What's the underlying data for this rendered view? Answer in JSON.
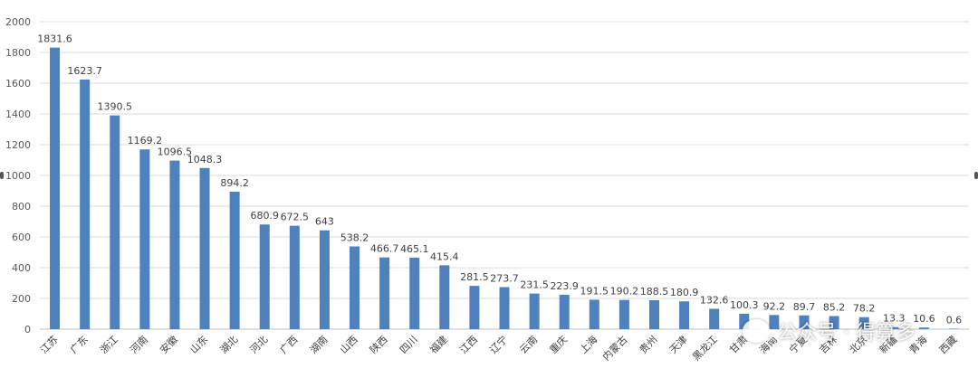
{
  "chart_data": {
    "type": "bar",
    "title": "",
    "xlabel": "",
    "ylabel": "",
    "ylim": [
      0,
      2000
    ],
    "yticks": [
      0,
      200,
      400,
      600,
      800,
      1000,
      1200,
      1400,
      1600,
      1800,
      2000
    ],
    "grid": true,
    "legend": "none",
    "bar_color": "#4F81BD",
    "categories": [
      "江苏",
      "广东",
      "浙江",
      "河南",
      "安徽",
      "山东",
      "湖北",
      "河北",
      "广西",
      "湖南",
      "山西",
      "陕西",
      "四川",
      "福建",
      "江西",
      "辽宁",
      "云南",
      "重庆",
      "上海",
      "内蒙古",
      "贵州",
      "天津",
      "黑龙江",
      "甘肃",
      "海南",
      "宁夏",
      "吉林",
      "北京",
      "新疆",
      "青海",
      "西藏"
    ],
    "values": [
      1831.6,
      1623.7,
      1390.5,
      1169.2,
      1096.5,
      1048.3,
      894.2,
      680.9,
      672.5,
      643,
      538.2,
      466.7,
      465.1,
      415.4,
      281.5,
      273.7,
      231.5,
      223.9,
      191.5,
      190.2,
      188.5,
      180.9,
      132.6,
      100.3,
      92.2,
      89.7,
      85.2,
      78.2,
      13.3,
      10.6,
      0.6
    ],
    "data_labels": [
      "1831.6",
      "1623.7",
      "1390.5",
      "1169.2",
      "1096.5",
      "1048.3",
      "894.2",
      "680.9",
      "672.5",
      "643",
      "538.2",
      "466.7",
      "465.1",
      "415.4",
      "281.5",
      "273.7",
      "231.5",
      "223.9",
      "191.5",
      "190.2",
      "188.5",
      "180.9",
      "132.6",
      "100.3",
      "92.2",
      "89.7",
      "85.2",
      "78.2",
      "13.3",
      "10.6",
      "0.6"
    ]
  },
  "watermark": {
    "text": "公众号 · 得算多",
    "icon": "wechat-icon"
  }
}
